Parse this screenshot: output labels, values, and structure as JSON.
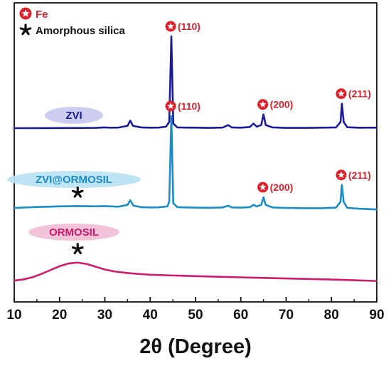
{
  "chart_data": {
    "type": "line",
    "xlabel": "2θ (Degree)",
    "xlim": [
      10,
      90
    ],
    "x_ticks": [
      "10",
      "20",
      "30",
      "40",
      "50",
      "60",
      "70",
      "80",
      "90"
    ],
    "ylabel": "",
    "grid": false,
    "legend": {
      "placement": "top-left",
      "items": [
        {
          "marker": "star-in-circle-icon",
          "label": "Fe",
          "color": "#e0202a"
        },
        {
          "marker": "asterisk-icon",
          "label": "Amorphous silica",
          "color": "#111111"
        }
      ]
    },
    "series": [
      {
        "name": "ZVI",
        "color": "#1b1b9a",
        "label_bg": "#c8c8ef",
        "points": [
          [
            10,
            0.0
          ],
          [
            15,
            0.05
          ],
          [
            20,
            0.08
          ],
          [
            25,
            0.15
          ],
          [
            28,
            0.2
          ],
          [
            30,
            0.5
          ],
          [
            31,
            0.3
          ],
          [
            33,
            0.4
          ],
          [
            35,
            1.5
          ],
          [
            35.6,
            5.0
          ],
          [
            36.2,
            1.5
          ],
          [
            38,
            0.5
          ],
          [
            40,
            0.3
          ],
          [
            42,
            0.4
          ],
          [
            43.5,
            1.0
          ],
          [
            44.2,
            4.0
          ],
          [
            44.67,
            60.0
          ],
          [
            45.1,
            3.0
          ],
          [
            46,
            0.5
          ],
          [
            48,
            0.4
          ],
          [
            50,
            0.3
          ],
          [
            53,
            0.2
          ],
          [
            56,
            0.4
          ],
          [
            57.2,
            2.0
          ],
          [
            58,
            0.5
          ],
          [
            60,
            0.3
          ],
          [
            62,
            0.8
          ],
          [
            62.8,
            3.0
          ],
          [
            63.5,
            1.0
          ],
          [
            64.5,
            2.0
          ],
          [
            65.0,
            9.0
          ],
          [
            65.5,
            2.0
          ],
          [
            67,
            0.5
          ],
          [
            70,
            0.2
          ],
          [
            74,
            0.2
          ],
          [
            78,
            0.3
          ],
          [
            81,
            0.5
          ],
          [
            82,
            4.0
          ],
          [
            82.3,
            16.0
          ],
          [
            82.7,
            4.0
          ],
          [
            83.5,
            0.6
          ],
          [
            86,
            0.3
          ],
          [
            90,
            0.3
          ]
        ],
        "peaks": [
          {
            "x": 44.67,
            "y": 60.0,
            "label": "(110)"
          },
          {
            "x": 65.0,
            "y": 9.0,
            "label": "(200)"
          },
          {
            "x": 82.3,
            "y": 16.0,
            "label": "(211)"
          }
        ]
      },
      {
        "name": "ZVI@ORMOSIL",
        "color": "#1a8cc8",
        "label_bg": "#b8e2f4",
        "points": [
          [
            10,
            0.0
          ],
          [
            15,
            0.6
          ],
          [
            20,
            1.0
          ],
          [
            24,
            1.2
          ],
          [
            28,
            1.0
          ],
          [
            30,
            1.2
          ],
          [
            33,
            0.8
          ],
          [
            35,
            2.0
          ],
          [
            35.6,
            5.0
          ],
          [
            36.3,
            1.5
          ],
          [
            38,
            0.5
          ],
          [
            40,
            0.3
          ],
          [
            42,
            0.4
          ],
          [
            43.8,
            1.0
          ],
          [
            44.2,
            4.0
          ],
          [
            44.67,
            60.0
          ],
          [
            45.1,
            3.0
          ],
          [
            46,
            0.5
          ],
          [
            48,
            0.3
          ],
          [
            50,
            0.2
          ],
          [
            53,
            0.1
          ],
          [
            56,
            0.3
          ],
          [
            57.2,
            1.5
          ],
          [
            58,
            0.3
          ],
          [
            60,
            0.2
          ],
          [
            62,
            0.5
          ],
          [
            62.8,
            2.0
          ],
          [
            63.5,
            1.0
          ],
          [
            64.5,
            2.0
          ],
          [
            65.0,
            7.0
          ],
          [
            65.5,
            2.0
          ],
          [
            67,
            0.3
          ],
          [
            70,
            0.0
          ],
          [
            74,
            -0.2
          ],
          [
            78,
            -0.2
          ],
          [
            81,
            0.2
          ],
          [
            82,
            4.0
          ],
          [
            82.3,
            15.0
          ],
          [
            82.7,
            4.0
          ],
          [
            83.5,
            0.0
          ],
          [
            86,
            -0.5
          ],
          [
            90,
            -1.0
          ]
        ],
        "peaks": [
          {
            "x": 44.67,
            "y": 60.0,
            "label": "(110)"
          },
          {
            "x": 65.0,
            "y": 7.0,
            "label": "(200)"
          },
          {
            "x": 82.3,
            "y": 15.0,
            "label": "(211)"
          }
        ],
        "silica_marker_x": 24
      },
      {
        "name": "ORMOSIL",
        "color": "#d01a6a",
        "label_bg": "#f2bcd6",
        "points": [
          [
            10,
            0.0
          ],
          [
            12,
            1.0
          ],
          [
            14,
            3.0
          ],
          [
            16,
            6.0
          ],
          [
            18,
            9.5
          ],
          [
            20,
            13.0
          ],
          [
            22,
            15.5
          ],
          [
            24,
            16.3
          ],
          [
            26,
            15.0
          ],
          [
            28,
            12.5
          ],
          [
            30,
            10.0
          ],
          [
            32,
            8.3
          ],
          [
            35,
            6.8
          ],
          [
            38,
            5.8
          ],
          [
            40,
            5.3
          ],
          [
            45,
            4.6
          ],
          [
            50,
            4.0
          ],
          [
            55,
            3.4
          ],
          [
            60,
            2.9
          ],
          [
            65,
            2.4
          ],
          [
            70,
            1.9
          ],
          [
            75,
            1.4
          ],
          [
            80,
            0.9
          ],
          [
            85,
            0.3
          ],
          [
            90,
            -0.4
          ]
        ],
        "peaks": [],
        "silica_marker_x": 24
      }
    ]
  }
}
